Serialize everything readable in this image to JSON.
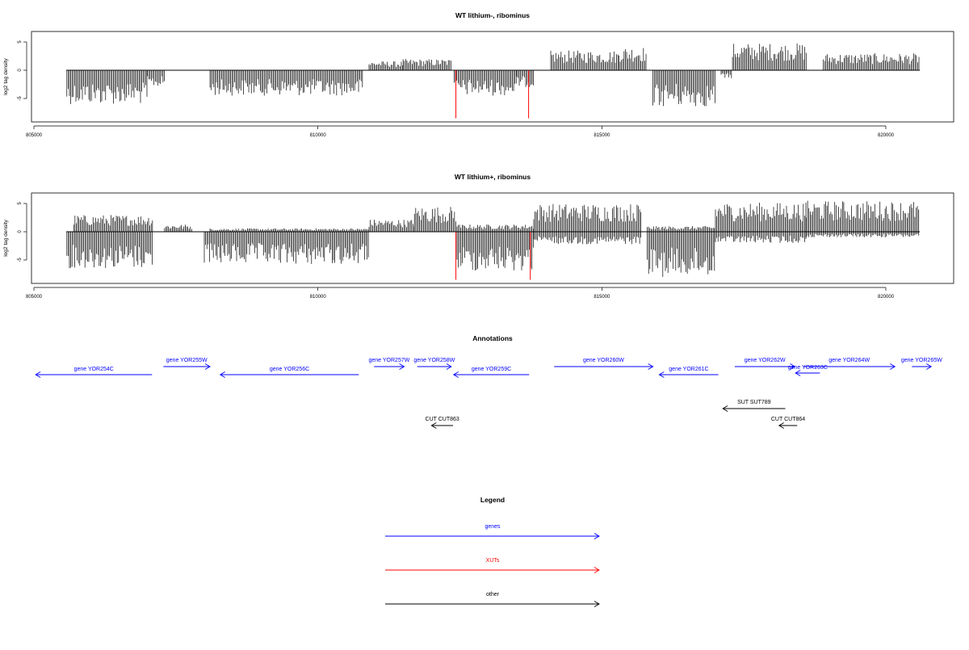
{
  "chart_data": [
    {
      "type": "bar",
      "title": "WT lithium-, ribominus",
      "ylabel": "log2 tag density",
      "xlim": [
        805000,
        821200
      ],
      "ylim": [
        -9,
        7
      ],
      "xticks": [
        805000,
        810000,
        815000,
        820000
      ],
      "yticks": [
        -5,
        0,
        5
      ],
      "baseline": [
        805570,
        820600
      ],
      "series": [
        {
          "values": [
            [
              805570,
              820600,
              0
            ],
            [
              805580,
              807000,
              -6.0
            ],
            [
              807000,
              807300,
              -3.0
            ],
            [
              808100,
              810800,
              -4.5
            ],
            [
              810900,
              811500,
              1.6
            ],
            [
              811500,
              812350,
              2.0
            ],
            [
              812400,
              813500,
              -4.5
            ],
            [
              813500,
              813800,
              -3.0
            ],
            [
              814100,
              815300,
              3.5
            ],
            [
              815300,
              815800,
              4.2
            ],
            [
              815900,
              817000,
              -6.5
            ],
            [
              817100,
              817300,
              -1.5
            ],
            [
              817300,
              818600,
              4.8
            ],
            [
              818900,
              820600,
              3.0
            ]
          ],
          "markers": [
            812430,
            813710
          ],
          "marker_depth": -8.5
        }
      ]
    },
    {
      "type": "bar",
      "title": "WT lithium+, ribominus",
      "ylabel": "log2 tag density",
      "xlim": [
        805000,
        821200
      ],
      "ylim": [
        -9,
        7
      ],
      "xticks": [
        805000,
        810000,
        815000,
        820000
      ],
      "yticks": [
        -5,
        0,
        5
      ],
      "baseline": [
        805570,
        820600
      ],
      "series": [
        {
          "values": [
            [
              805570,
              820600,
              0
            ],
            [
              805580,
              807100,
              -6.5
            ],
            [
              805700,
              807100,
              3.0
            ],
            [
              807300,
              807800,
              1.3
            ],
            [
              808000,
              810900,
              -5.8
            ],
            [
              808100,
              810900,
              0.6
            ],
            [
              810900,
              811700,
              2.2
            ],
            [
              811700,
              812450,
              4.5
            ],
            [
              812450,
              813800,
              -7.0
            ],
            [
              812450,
              813800,
              1.3
            ],
            [
              813800,
              815700,
              5.0
            ],
            [
              813800,
              815700,
              -2.2
            ],
            [
              815800,
              817000,
              -8.0
            ],
            [
              815800,
              817000,
              1.0
            ],
            [
              817000,
              818600,
              5.2
            ],
            [
              817000,
              818600,
              -2.0
            ],
            [
              818600,
              820600,
              5.5
            ],
            [
              818600,
              820600,
              -1.0
            ]
          ],
          "markers": [
            812430,
            813740
          ],
          "marker_depth": -8.5
        }
      ]
    }
  ],
  "annotations": {
    "title": "Annotations",
    "xlim": [
      805000,
      821200
    ],
    "features": [
      {
        "label": "gene YOR254C",
        "start": 805030,
        "end": 807080,
        "dir": "left",
        "row": "low",
        "color": "#0000ff"
      },
      {
        "label": "gene YOR255W",
        "start": 807280,
        "end": 808100,
        "dir": "right",
        "row": "high",
        "color": "#0000ff"
      },
      {
        "label": "gene YOR256C",
        "start": 808280,
        "end": 810720,
        "dir": "left",
        "row": "low",
        "color": "#0000ff"
      },
      {
        "label": "gene YOR257W",
        "start": 810990,
        "end": 811520,
        "dir": "right",
        "row": "high",
        "color": "#0000ff"
      },
      {
        "label": "gene YOR258W",
        "start": 811750,
        "end": 812350,
        "dir": "right",
        "row": "high",
        "color": "#0000ff"
      },
      {
        "label": "gene YOR259C",
        "start": 812390,
        "end": 813720,
        "dir": "left",
        "row": "low",
        "color": "#0000ff"
      },
      {
        "label": "gene YOR260W",
        "start": 814160,
        "end": 815900,
        "dir": "right",
        "row": "high",
        "color": "#0000ff"
      },
      {
        "label": "gene YOR261C",
        "start": 816010,
        "end": 817050,
        "dir": "left",
        "row": "low",
        "color": "#0000ff"
      },
      {
        "label": "gene YOR262W",
        "start": 817340,
        "end": 818400,
        "dir": "right",
        "row": "high",
        "color": "#0000ff"
      },
      {
        "label": "gene YOR263C",
        "start": 818410,
        "end": 818840,
        "dir": "left",
        "row": "mid",
        "color": "#0000ff"
      },
      {
        "label": "gene YOR264W",
        "start": 818550,
        "end": 820160,
        "dir": "right",
        "row": "high",
        "color": "#0000ff"
      },
      {
        "label": "gene YOR265W",
        "start": 820460,
        "end": 820800,
        "dir": "right",
        "row": "high",
        "color": "#0000ff"
      },
      {
        "label": "SUT SUT789",
        "start": 817130,
        "end": 818230,
        "dir": "left",
        "row": "sut",
        "color": "#000000"
      },
      {
        "label": "CUT CUT863",
        "start": 812000,
        "end": 812380,
        "dir": "left",
        "row": "cut",
        "color": "#000000"
      },
      {
        "label": "CUT CUT864",
        "start": 818120,
        "end": 818440,
        "dir": "left",
        "row": "cut",
        "color": "#000000"
      }
    ]
  },
  "legend": {
    "title": "Legend",
    "items": [
      {
        "label": "genes",
        "color": "#0000ff"
      },
      {
        "label": "XUTs",
        "color": "#ff0000"
      },
      {
        "label": "other",
        "color": "#000000"
      }
    ]
  }
}
